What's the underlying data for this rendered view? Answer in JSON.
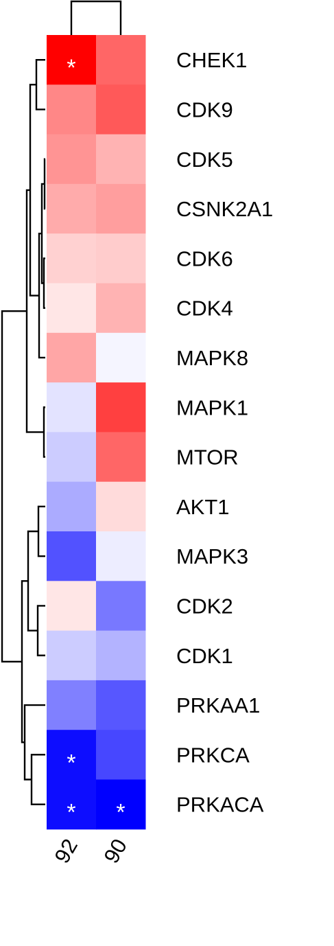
{
  "chart_data": {
    "type": "heatmap",
    "columns": [
      "92",
      "90"
    ],
    "rows": [
      "CHEK1",
      "CDK9",
      "CDK5",
      "CSNK2A1",
      "CDK6",
      "CDK4",
      "MAPK8",
      "MAPK1",
      "MTOR",
      "AKT1",
      "MAPK3",
      "CDK2",
      "CDK1",
      "PRKAA1",
      "PRKCA",
      "PRKACA"
    ],
    "values": [
      [
        1.0,
        0.6
      ],
      [
        0.47,
        0.65
      ],
      [
        0.42,
        0.3
      ],
      [
        0.33,
        0.38
      ],
      [
        0.18,
        0.2
      ],
      [
        0.1,
        0.3
      ],
      [
        0.35,
        -0.04
      ],
      [
        -0.11,
        0.75
      ],
      [
        -0.2,
        0.6
      ],
      [
        -0.33,
        0.14
      ],
      [
        -0.68,
        -0.07
      ],
      [
        0.1,
        -0.53
      ],
      [
        -0.2,
        -0.3
      ],
      [
        -0.5,
        -0.66
      ],
      [
        -0.95,
        -0.72
      ],
      [
        -0.95,
        -1.0
      ]
    ],
    "significant": [
      [
        true,
        false
      ],
      [
        false,
        false
      ],
      [
        false,
        false
      ],
      [
        false,
        false
      ],
      [
        false,
        false
      ],
      [
        false,
        false
      ],
      [
        false,
        false
      ],
      [
        false,
        false
      ],
      [
        false,
        false
      ],
      [
        false,
        false
      ],
      [
        false,
        false
      ],
      [
        false,
        false
      ],
      [
        false,
        false
      ],
      [
        false,
        false
      ],
      [
        true,
        false
      ],
      [
        true,
        true
      ]
    ],
    "significance_mark": "*",
    "color_scale": {
      "low": "#0000ff",
      "mid": "#ffffff",
      "high": "#ff0000",
      "range": [
        -1,
        1
      ]
    },
    "row_dendrogram": true,
    "column_dendrogram": true,
    "title": "",
    "xlabel": "",
    "ylabel": ""
  }
}
